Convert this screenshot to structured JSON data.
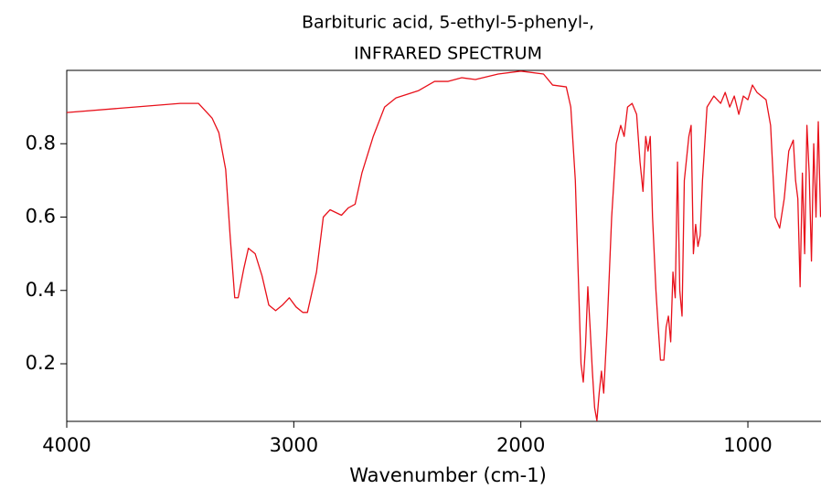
{
  "chart_data": {
    "type": "line",
    "title": "Barbituric acid, 5-ethyl-5-phenyl-,",
    "subtitle": "INFRARED SPECTRUM",
    "x_label": "Wavenumber (cm-1)",
    "xlim": [
      4000,
      678
    ],
    "xticks": [
      4000,
      3000,
      2000,
      1000
    ],
    "ylim": [
      0.043,
      1.0
    ],
    "yticks": [
      0.2,
      0.4,
      0.6,
      0.8
    ],
    "grid": false,
    "series": [
      {
        "color": "#e8101a",
        "x": [
          4000,
          3500,
          3420,
          3360,
          3330,
          3300,
          3280,
          3260,
          3245,
          3220,
          3200,
          3170,
          3140,
          3110,
          3080,
          3050,
          3020,
          2990,
          2960,
          2940,
          2900,
          2870,
          2840,
          2790,
          2760,
          2730,
          2700,
          2650,
          2600,
          2550,
          2450,
          2380,
          2320,
          2260,
          2200,
          2100,
          2000,
          1900,
          1860,
          1800,
          1780,
          1760,
          1745,
          1735,
          1725,
          1715,
          1705,
          1695,
          1685,
          1675,
          1665,
          1655,
          1645,
          1635,
          1620,
          1600,
          1580,
          1560,
          1545,
          1530,
          1510,
          1490,
          1475,
          1462,
          1450,
          1440,
          1430,
          1420,
          1405,
          1395,
          1385,
          1370,
          1360,
          1350,
          1340,
          1330,
          1320,
          1310,
          1300,
          1290,
          1280,
          1260,
          1250,
          1240,
          1230,
          1220,
          1210,
          1200,
          1180,
          1150,
          1120,
          1100,
          1080,
          1060,
          1040,
          1020,
          1000,
          980,
          960,
          940,
          920,
          900,
          880,
          860,
          840,
          820,
          800,
          790,
          780,
          770,
          760,
          750,
          740,
          730,
          720,
          710,
          700,
          690,
          680
        ],
        "values": [
          0.885,
          0.91,
          0.91,
          0.87,
          0.83,
          0.73,
          0.545,
          0.38,
          0.38,
          0.46,
          0.515,
          0.5,
          0.44,
          0.36,
          0.345,
          0.36,
          0.38,
          0.355,
          0.34,
          0.34,
          0.45,
          0.6,
          0.62,
          0.605,
          0.625,
          0.635,
          0.72,
          0.82,
          0.9,
          0.925,
          0.945,
          0.97,
          0.97,
          0.98,
          0.975,
          0.99,
          0.998,
          0.99,
          0.96,
          0.955,
          0.9,
          0.7,
          0.4,
          0.2,
          0.15,
          0.25,
          0.41,
          0.3,
          0.18,
          0.08,
          0.045,
          0.12,
          0.18,
          0.12,
          0.3,
          0.6,
          0.8,
          0.85,
          0.82,
          0.9,
          0.91,
          0.88,
          0.75,
          0.67,
          0.82,
          0.78,
          0.82,
          0.6,
          0.4,
          0.3,
          0.21,
          0.21,
          0.3,
          0.33,
          0.26,
          0.45,
          0.38,
          0.75,
          0.4,
          0.33,
          0.7,
          0.82,
          0.85,
          0.5,
          0.58,
          0.52,
          0.55,
          0.7,
          0.9,
          0.93,
          0.91,
          0.94,
          0.9,
          0.93,
          0.88,
          0.93,
          0.92,
          0.96,
          0.94,
          0.93,
          0.92,
          0.85,
          0.6,
          0.57,
          0.65,
          0.78,
          0.81,
          0.7,
          0.65,
          0.41,
          0.72,
          0.5,
          0.85,
          0.72,
          0.48,
          0.8,
          0.6,
          0.86,
          0.6
        ]
      }
    ]
  }
}
